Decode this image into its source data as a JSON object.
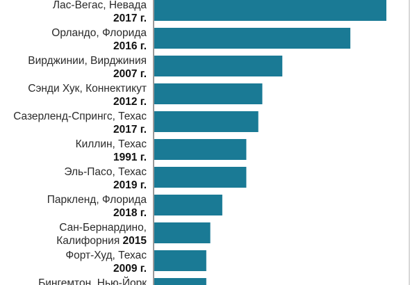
{
  "chart_data": {
    "type": "bar",
    "orientation": "horizontal",
    "bar_color": "#1a7a95",
    "categories": [
      {
        "place": "Лас-Вегас, Невада",
        "year": "2017 г."
      },
      {
        "place": "Орландо, Флорида",
        "year": "2016 г."
      },
      {
        "place": "Вирджинии, Вирджиния",
        "year": "2007 г."
      },
      {
        "place": "Сэнди Хук, Коннектикут",
        "year": "2012 г."
      },
      {
        "place": "Сазерленд-Спрингс, Техас",
        "year": "2017 г."
      },
      {
        "place": "Киллин, Техас",
        "year": "1991 г."
      },
      {
        "place": "Эль-Пасо, Техас",
        "year": "2019 г."
      },
      {
        "place": "Паркленд, Флорида",
        "year": "2018 г."
      },
      {
        "place": "Сан-Бернардино,",
        "place2": "Калифорния",
        "year": "2015"
      },
      {
        "place": "Форт-Худ, Техас",
        "year": "2009 г."
      },
      {
        "place": "Бингемтон, Нью-Йорк",
        "year": ""
      }
    ],
    "values": [
      58,
      49,
      32,
      27,
      26,
      23,
      23,
      17,
      14,
      13,
      13
    ],
    "xlim": [
      0,
      60
    ]
  }
}
